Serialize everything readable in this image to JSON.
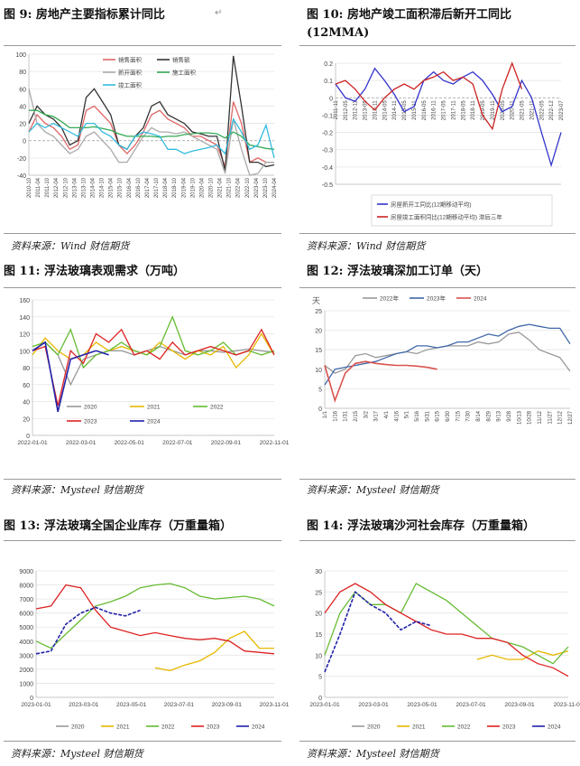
{
  "figures": [
    {
      "caption": "图 9:    房地产主要指标累计同比",
      "source": "资料来源：Wind 财信期货",
      "chart_data": {
        "type": "line",
        "yticks": [
          "100",
          "80",
          "60",
          "40",
          "20",
          "0",
          "-20",
          "-40"
        ],
        "ylim": [
          -40,
          100
        ],
        "xticks": [
          "2010-10",
          "2011-04",
          "2011-10",
          "2012-04",
          "2012-10",
          "2013-04",
          "2013-10",
          "2014-04",
          "2014-10",
          "2015-04",
          "2015-10",
          "2016-04",
          "2016-10",
          "2017-04",
          "2017-10",
          "2018-04",
          "2018-10",
          "2019-04",
          "2019-10",
          "2020-04",
          "2020-10",
          "2021-04",
          "2021-10",
          "2022-04",
          "2022-10",
          "2023-04",
          "2023-10",
          "2024-04"
        ],
        "series": [
          {
            "name": "销售面积",
            "color": "#e06666",
            "values": [
              10,
              30,
              20,
              15,
              5,
              -10,
              -5,
              35,
              40,
              30,
              20,
              -5,
              -15,
              -5,
              10,
              30,
              35,
              25,
              20,
              15,
              5,
              5,
              0,
              -5,
              -30,
              45,
              20,
              -25,
              -20,
              -25,
              -25
            ]
          },
          {
            "name": "销售额",
            "color": "#333333",
            "values": [
              20,
              40,
              30,
              25,
              15,
              -5,
              0,
              50,
              60,
              45,
              30,
              -5,
              -10,
              5,
              15,
              40,
              45,
              30,
              25,
              20,
              10,
              8,
              5,
              5,
              -35,
              98,
              40,
              -25,
              -25,
              -30,
              -28
            ]
          },
          {
            "name": "新开面积",
            "color": "#aaaaaa",
            "values": [
              60,
              20,
              10,
              5,
              -5,
              -15,
              -10,
              5,
              10,
              0,
              -10,
              -25,
              -25,
              -10,
              5,
              15,
              10,
              10,
              8,
              10,
              5,
              0,
              -5,
              -10,
              -38,
              25,
              -10,
              -40,
              -38,
              -25,
              -25
            ]
          },
          {
            "name": "施工面积",
            "color": "#33aa55",
            "values": [
              35,
              35,
              30,
              28,
              22,
              15,
              15,
              15,
              16,
              14,
              12,
              8,
              5,
              5,
              5,
              5,
              4,
              5,
              5,
              7,
              8,
              9,
              9,
              8,
              3,
              10,
              5,
              -5,
              -7,
              -9,
              -10
            ]
          },
          {
            "name": "竣工面积",
            "color": "#33bbdd",
            "values": [
              10,
              20,
              15,
              20,
              15,
              10,
              5,
              20,
              20,
              10,
              5,
              -5,
              -10,
              5,
              10,
              8,
              5,
              -10,
              -10,
              -15,
              -12,
              -10,
              -8,
              -5,
              -15,
              25,
              10,
              -10,
              -5,
              18,
              -20
            ]
          }
        ]
      }
    },
    {
      "caption_line1": "图   10:    房地产竣工面积滞后新开工同比",
      "caption_line2": "(12MMA)",
      "source": "资料来源：Wind 财信期货",
      "chart_data": {
        "type": "line",
        "yticks": [
          "0.2",
          "0.1",
          "0",
          "-0.1",
          "-0.2",
          "-0.3",
          "-0.4",
          "-0.5"
        ],
        "ylim": [
          -0.5,
          0.2
        ],
        "xticks": [
          "2011-11",
          "2012-05",
          "2012-11",
          "2013-05",
          "2013-11",
          "2014-05",
          "2014-11",
          "2015-05",
          "2015-11",
          "2016-05",
          "2016-11",
          "2017-05",
          "2017-11",
          "2018-05",
          "2018-11",
          "2019-05",
          "2019-11",
          "2020-05",
          "2020-11",
          "2021-05",
          "2021-11",
          "2022-05",
          "2022-12",
          "2023-07"
        ],
        "series": [
          {
            "name": "房屋新开工同比(12期移动平均)",
            "color": "#3333cc",
            "values": [
              0.08,
              0.0,
              -0.02,
              0.05,
              0.17,
              0.1,
              0.02,
              -0.08,
              -0.05,
              0.1,
              0.15,
              0.1,
              0.08,
              0.12,
              0.15,
              0.1,
              0.02,
              -0.08,
              -0.05,
              0.1,
              0.0,
              -0.2,
              -0.39,
              -0.2
            ]
          },
          {
            "name": "房屋竣工面积同比(12期移动平均)  滞后三年",
            "color": "#cc2222",
            "values": [
              0.08,
              0.1,
              0.05,
              -0.02,
              -0.07,
              0.0,
              0.05,
              0.08,
              0.05,
              0.1,
              0.12,
              0.15,
              0.1,
              0.12,
              0.08,
              -0.1,
              -0.18,
              0.05,
              0.2,
              0.05,
              null,
              null,
              null,
              null
            ]
          }
        ]
      }
    },
    {
      "caption": "图 11:   浮法玻璃表观需求（万吨）",
      "source": "资料来源：Mysteel 财信期货",
      "chart_data": {
        "type": "line",
        "yticks": [
          "160",
          "140",
          "120",
          "100",
          "80",
          "60",
          "40",
          "20",
          "0"
        ],
        "ylim": [
          0,
          160
        ],
        "xticks": [
          "2022-01-01",
          "2022-03-01",
          "2022-05-01",
          "2022-07-01",
          "2022-09-01",
          "2022-11-01"
        ],
        "series": [
          {
            "name": "2020",
            "color": "#999999",
            "values": [
              100,
              110,
              95,
              60,
              90,
              95,
              100,
              100,
              95,
              100,
              105,
              100,
              95,
              100,
              100,
              98,
              100,
              102,
              100,
              98
            ]
          },
          {
            "name": "2021",
            "color": "#e6b800",
            "values": [
              95,
              115,
              100,
              90,
              95,
              110,
              100,
              105,
              100,
              95,
              110,
              100,
              90,
              100,
              95,
              105,
              80,
              95,
              120,
              95
            ]
          },
          {
            "name": "2022",
            "color": "#66bb33",
            "values": [
              105,
              110,
              95,
              125,
              80,
              95,
              100,
              110,
              100,
              95,
              105,
              140,
              100,
              95,
              100,
              110,
              95,
              100,
              95,
              100
            ]
          },
          {
            "name": "2023",
            "color": "#dd2222",
            "values": [
              100,
              105,
              35,
              100,
              85,
              120,
              110,
              125,
              95,
              100,
              90,
              110,
              95,
              100,
              105,
              100,
              95,
              100,
              125,
              95
            ]
          },
          {
            "name": "2024",
            "color": "#2222aa",
            "values": [
              100,
              110,
              28,
              90,
              95,
              100,
              95,
              null,
              null,
              null,
              null,
              null,
              null,
              null,
              null,
              null,
              null,
              null,
              null,
              null
            ]
          }
        ]
      }
    },
    {
      "caption": "图 12:   浮法玻璃深加工订单（天）",
      "source": "资料来源：Mysteel 财信期货",
      "chart_data": {
        "type": "line",
        "ylabel": "天",
        "yticks": [
          "25",
          "20",
          "15",
          "10",
          "5",
          "0"
        ],
        "ylim": [
          0,
          25
        ],
        "xticks": [
          "1/1",
          "1/16",
          "1/31",
          "2/15",
          "3/2",
          "3/17",
          "4/1",
          "4/16",
          "5/1",
          "5/16",
          "5/31",
          "6/15",
          "6/30",
          "7/15",
          "7/30",
          "8/14",
          "8/29",
          "9/13",
          "9/28",
          "10/13",
          "10/28",
          "11/12",
          "11/27",
          "12/12",
          "12/27"
        ],
        "series": [
          {
            "name": "2022年",
            "color": "#999999",
            "values": [
              11,
              9,
              10,
              13.5,
              14,
              13,
              13.5,
              14,
              14.5,
              14,
              15,
              15.5,
              16,
              16,
              16,
              17,
              16.5,
              17,
              19,
              19.5,
              17.5,
              15,
              14,
              13,
              9.5
            ]
          },
          {
            "name": "2023年",
            "color": "#3f67a8",
            "values": [
              6,
              10,
              10.5,
              11,
              11.5,
              12,
              13,
              14,
              14.5,
              16,
              16,
              15.5,
              16,
              17,
              17,
              18,
              19,
              18.5,
              20,
              21,
              21.5,
              21,
              20.5,
              20.5,
              16.5
            ]
          },
          {
            "name": "2024",
            "color": "#d9534f",
            "values": [
              11,
              2,
              9,
              11.5,
              12,
              11.5,
              11.2,
              11,
              11,
              10.8,
              10.5,
              10,
              null,
              null,
              null,
              null,
              null,
              null,
              null,
              null,
              null,
              null,
              null,
              null,
              null
            ]
          }
        ]
      }
    },
    {
      "caption": "图 13:   浮法玻璃全国企业库存（万重量箱）",
      "source": "资料来源：Mysteel 财信期货",
      "chart_data": {
        "type": "line",
        "yticks": [
          "9000",
          "8000",
          "7000",
          "6000",
          "5000",
          "4000",
          "3000",
          "2000",
          "1000",
          "0"
        ],
        "ylim": [
          0,
          9000
        ],
        "xticks": [
          "2023-01-01",
          "2023-03-01",
          "2023-05-01",
          "2023-07-01",
          "2023-09-01",
          "2023-11-01"
        ],
        "series": [
          {
            "name": "2020",
            "color": "#999999",
            "values": [
              null,
              null,
              null,
              null,
              null,
              null,
              null,
              null,
              null,
              null,
              null,
              null,
              null,
              null,
              null,
              null,
              null
            ]
          },
          {
            "name": "2021",
            "color": "#e6b800",
            "values": [
              null,
              null,
              null,
              null,
              null,
              null,
              null,
              null,
              2100,
              1900,
              2300,
              2600,
              3200,
              4200,
              4700,
              3500,
              3500
            ]
          },
          {
            "name": "2022",
            "color": "#66bb33",
            "values": [
              4000,
              3500,
              4500,
              5500,
              6500,
              6800,
              7200,
              7800,
              8000,
              8100,
              7800,
              7200,
              7000,
              7100,
              7200,
              7000,
              6500
            ]
          },
          {
            "name": "2023",
            "color": "#dd2222",
            "values": [
              6300,
              6500,
              8000,
              7800,
              6200,
              5000,
              4700,
              4400,
              4600,
              4400,
              4200,
              4100,
              4200,
              4000,
              3300,
              3200,
              3100
            ]
          },
          {
            "name": "2024",
            "color": "#2222aa",
            "values": [
              3100,
              3300,
              5200,
              6000,
              6400,
              6000,
              5800,
              6200,
              null,
              null,
              null,
              null,
              null,
              null,
              null,
              null,
              null
            ]
          }
        ]
      }
    },
    {
      "caption": "图 14:   浮法玻璃沙河社会库存（万重量箱）",
      "source": "资料来源：Mysteel 财信期货",
      "chart_data": {
        "type": "line",
        "yticks": [
          "30",
          "25",
          "20",
          "15",
          "10",
          "5",
          "0"
        ],
        "ylim": [
          0,
          30
        ],
        "xticks": [
          "2023-01-01",
          "2023-03-01",
          "2023-05-01",
          "2023-07-01",
          "2023-09-01",
          "2023-11-01"
        ],
        "series": [
          {
            "name": "2020",
            "color": "#999999",
            "values": [
              null,
              null,
              null,
              null,
              null,
              null,
              null,
              null,
              null,
              null,
              null,
              null,
              null,
              null,
              null,
              null,
              null
            ]
          },
          {
            "name": "2021",
            "color": "#e6b800",
            "values": [
              null,
              null,
              null,
              null,
              null,
              null,
              null,
              null,
              null,
              null,
              9,
              10,
              9,
              9,
              11,
              10,
              11
            ]
          },
          {
            "name": "2022",
            "color": "#66bb33",
            "values": [
              10,
              20,
              25,
              22,
              22,
              20,
              27,
              25,
              23,
              20,
              17,
              14,
              13,
              12,
              10,
              8,
              12
            ]
          },
          {
            "name": "2023",
            "color": "#dd2222",
            "values": [
              20,
              25,
              27,
              25,
              22,
              20,
              18,
              16,
              15,
              15,
              14,
              14,
              13,
              10,
              8,
              7,
              5
            ]
          },
          {
            "name": "2024",
            "color": "#2222aa",
            "values": [
              6,
              15,
              25,
              22,
              20,
              16,
              18,
              17,
              null,
              null,
              null,
              null,
              null,
              null,
              null,
              null,
              null
            ]
          }
        ]
      }
    }
  ]
}
